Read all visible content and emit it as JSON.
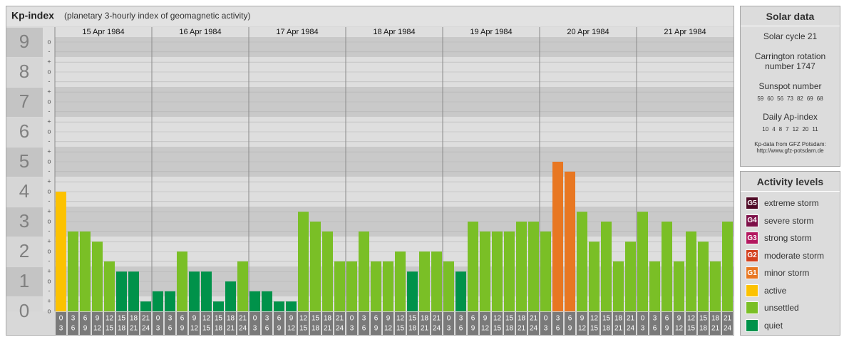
{
  "chart_data": {
    "type": "bar",
    "title": "Kp-index",
    "subtitle": "(planetary 3-hourly index of geomagnetic activity)",
    "ylim": [
      0,
      9.5
    ],
    "yticks": [
      0,
      1,
      2,
      3,
      4,
      5,
      6,
      7,
      8,
      9
    ],
    "minor_yticks": [
      {
        "value": 9,
        "label": "o"
      },
      {
        "value": 8.67,
        "label": "-"
      },
      {
        "value": 8.33,
        "label": "+"
      },
      {
        "value": 8,
        "label": "o"
      },
      {
        "value": 7.67,
        "label": "-"
      },
      {
        "value": 7.33,
        "label": "+"
      },
      {
        "value": 7,
        "label": "o"
      },
      {
        "value": 6.67,
        "label": "-"
      },
      {
        "value": 6.33,
        "label": "+"
      },
      {
        "value": 6,
        "label": "o"
      },
      {
        "value": 5.67,
        "label": "-"
      },
      {
        "value": 5.33,
        "label": "+"
      },
      {
        "value": 5,
        "label": "o"
      },
      {
        "value": 4.67,
        "label": "-"
      },
      {
        "value": 4.33,
        "label": "+"
      },
      {
        "value": 4,
        "label": "o"
      },
      {
        "value": 3.67,
        "label": "-"
      },
      {
        "value": 3.33,
        "label": "+"
      },
      {
        "value": 3,
        "label": "o"
      },
      {
        "value": 2.67,
        "label": "-"
      },
      {
        "value": 2.33,
        "label": "+"
      },
      {
        "value": 2,
        "label": "o"
      },
      {
        "value": 1.67,
        "label": "-"
      },
      {
        "value": 1.33,
        "label": "+"
      },
      {
        "value": 1,
        "label": "o"
      },
      {
        "value": 0.67,
        "label": "-"
      },
      {
        "value": 0.33,
        "label": "+"
      },
      {
        "value": 0,
        "label": "o"
      }
    ],
    "hour_ranges": [
      [
        "0",
        "3"
      ],
      [
        "3",
        "6"
      ],
      [
        "6",
        "9"
      ],
      [
        "9",
        "12"
      ],
      [
        "12",
        "15"
      ],
      [
        "15",
        "18"
      ],
      [
        "18",
        "21"
      ],
      [
        "21",
        "24"
      ]
    ],
    "days": [
      {
        "date": "15 Apr 1984",
        "values": [
          4,
          2.67,
          2.67,
          2.33,
          1.67,
          1.33,
          1.33,
          0.33
        ],
        "colors": [
          "#fcc200",
          "#7abf26",
          "#7abf26",
          "#7abf26",
          "#7abf26",
          "#00924a",
          "#00924a",
          "#00924a"
        ]
      },
      {
        "date": "16 Apr 1984",
        "values": [
          0.67,
          0.67,
          2,
          1.33,
          1.33,
          0.33,
          1,
          1.67
        ],
        "colors": [
          "#00924a",
          "#00924a",
          "#7abf26",
          "#00924a",
          "#00924a",
          "#00924a",
          "#00924a",
          "#7abf26"
        ]
      },
      {
        "date": "17 Apr 1984",
        "values": [
          0.67,
          0.67,
          0.33,
          0.33,
          3.33,
          3,
          2.67,
          1.67
        ],
        "colors": [
          "#00924a",
          "#00924a",
          "#00924a",
          "#00924a",
          "#7abf26",
          "#7abf26",
          "#7abf26",
          "#7abf26"
        ]
      },
      {
        "date": "18 Apr 1984",
        "values": [
          1.67,
          2.67,
          1.67,
          1.67,
          2,
          1.33,
          2,
          2
        ],
        "colors": [
          "#7abf26",
          "#7abf26",
          "#7abf26",
          "#7abf26",
          "#7abf26",
          "#00924a",
          "#7abf26",
          "#7abf26"
        ]
      },
      {
        "date": "19 Apr 1984",
        "values": [
          1.67,
          1.33,
          3,
          2.67,
          2.67,
          2.67,
          3,
          3
        ],
        "colors": [
          "#7abf26",
          "#00924a",
          "#7abf26",
          "#7abf26",
          "#7abf26",
          "#7abf26",
          "#7abf26",
          "#7abf26"
        ]
      },
      {
        "date": "20 Apr 1984",
        "values": [
          2.67,
          5,
          4.67,
          3.33,
          2.33,
          3,
          1.67,
          2.33
        ],
        "colors": [
          "#7abf26",
          "#e87722",
          "#e87722",
          "#7abf26",
          "#7abf26",
          "#7abf26",
          "#7abf26",
          "#7abf26"
        ]
      },
      {
        "date": "21 Apr 1984",
        "values": [
          3.33,
          1.67,
          3,
          1.67,
          2.67,
          2.33,
          1.67,
          3
        ],
        "colors": [
          "#7abf26",
          "#7abf26",
          "#7abf26",
          "#7abf26",
          "#7abf26",
          "#7abf26",
          "#7abf26",
          "#7abf26"
        ]
      }
    ]
  },
  "sidebar": {
    "solar_title": "Solar data",
    "solar_cycle": "Solar cycle 21",
    "carrington": "Carrington rotation number 1747",
    "sunspot_label": "Sunspot number",
    "sunspot_numbers": [
      59,
      60,
      56,
      73,
      82,
      69,
      68
    ],
    "ap_label": "Daily Ap-index",
    "ap_values": [
      10,
      4,
      8,
      7,
      12,
      20,
      11
    ],
    "source": "Kp-data from GFZ Potsdam:",
    "source_url": "http://www.gfz-potsdam.de",
    "levels_title": "Activity levels",
    "levels": [
      {
        "badge": "G5",
        "name": "extreme storm",
        "color": "#4f0a26"
      },
      {
        "badge": "G4",
        "name": "severe storm",
        "color": "#7d1048"
      },
      {
        "badge": "G3",
        "name": "strong storm",
        "color": "#b3175f"
      },
      {
        "badge": "G2",
        "name": "moderate storm",
        "color": "#d3401d"
      },
      {
        "badge": "G1",
        "name": "minor storm",
        "color": "#e87722"
      },
      {
        "name": "active",
        "color": "#fcc200"
      },
      {
        "name": "unsettled",
        "color": "#7abf26"
      },
      {
        "name": "quiet",
        "color": "#00924a"
      }
    ]
  }
}
